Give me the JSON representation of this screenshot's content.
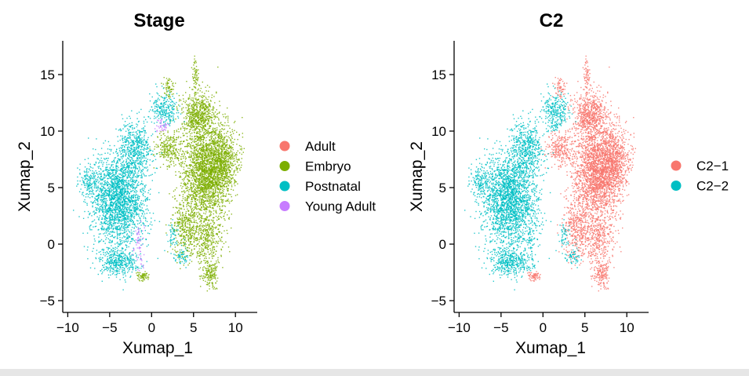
{
  "chart_data": [
    {
      "type": "scatter",
      "title": "Stage",
      "xlabel": "Xumap_1",
      "ylabel": "Xumap_2",
      "xlim": [
        -10.5,
        12
      ],
      "ylim": [
        -6,
        18
      ],
      "xticks": [
        -10,
        -5,
        0,
        5,
        10
      ],
      "yticks": [
        -5,
        0,
        5,
        10,
        15
      ],
      "xtick_labels": [
        "−10",
        "−5",
        "0",
        "5",
        "10"
      ],
      "ytick_labels": [
        "−5",
        "0",
        "5",
        "10",
        "15"
      ],
      "legend_position": "right",
      "series": [
        {
          "name": "Adult",
          "color": "#F8766D"
        },
        {
          "name": "Embryo",
          "color": "#7CAE00"
        },
        {
          "name": "Postnatal",
          "color": "#00BFC4"
        },
        {
          "name": "Young Adult",
          "color": "#C77CFF"
        }
      ]
    },
    {
      "type": "scatter",
      "title": "C2",
      "xlabel": "Xumap_1",
      "ylabel": "Xumap_2",
      "xlim": [
        -10.5,
        12
      ],
      "ylim": [
        -6,
        18
      ],
      "xticks": [
        -10,
        -5,
        0,
        5,
        10
      ],
      "yticks": [
        -5,
        0,
        5,
        10,
        15
      ],
      "xtick_labels": [
        "−10",
        "−5",
        "0",
        "5",
        "10"
      ],
      "ytick_labels": [
        "−5",
        "0",
        "5",
        "10",
        "15"
      ],
      "legend_position": "right",
      "series": [
        {
          "name": "C2−1",
          "color": "#F8766D"
        },
        {
          "name": "C2−2",
          "color": "#00BFC4"
        }
      ]
    }
  ]
}
